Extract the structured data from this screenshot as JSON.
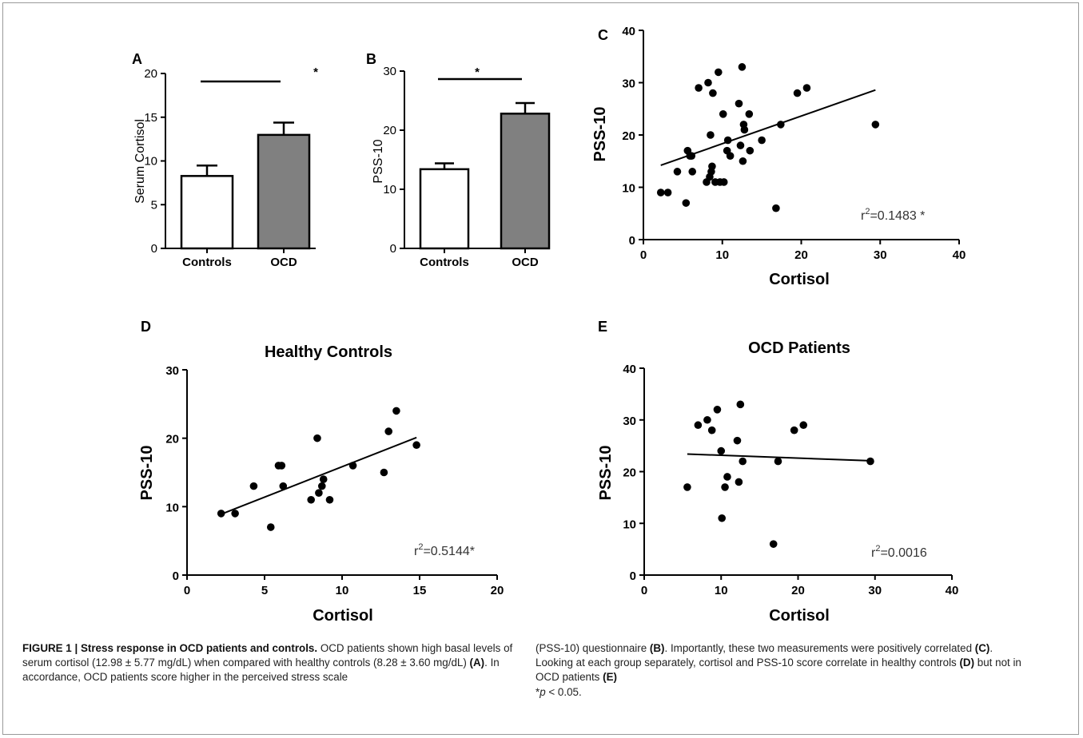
{
  "panels": {
    "A": {
      "letter": "A",
      "ylabel": "Serum Cortisol",
      "star": "*"
    },
    "B": {
      "letter": "B",
      "ylabel": "PSS-10",
      "star": "*"
    },
    "C": {
      "letter": "C",
      "ylabel": "PSS-10",
      "xlabel": "Cortisol",
      "annotation_base": "r",
      "annotation_sup": "2",
      "annotation_rest": "=0.1483 *"
    },
    "D": {
      "letter": "D",
      "title": "Healthy Controls",
      "ylabel": "PSS-10",
      "xlabel": "Cortisol",
      "annotation_base": "r",
      "annotation_sup": "2",
      "annotation_rest": "=0.5144*"
    },
    "E": {
      "letter": "E",
      "title": "OCD Patients",
      "ylabel": "PSS-10",
      "xlabel": "Cortisol",
      "annotation_base": "r",
      "annotation_sup": "2",
      "annotation_rest": "=0.0016"
    }
  },
  "chart_data": [
    {
      "id": "A",
      "type": "bar",
      "categories": [
        "Controls",
        "OCD"
      ],
      "values": [
        8.28,
        12.98
      ],
      "errors": [
        1.2,
        1.4
      ],
      "colors": [
        "#ffffff",
        "#808080"
      ],
      "ylabel": "Serum Cortisol",
      "ylim": [
        0,
        20
      ],
      "yticks": [
        0,
        5,
        10,
        15,
        20
      ]
    },
    {
      "id": "B",
      "type": "bar",
      "categories": [
        "Controls",
        "OCD"
      ],
      "values": [
        13.4,
        22.8
      ],
      "errors": [
        1.0,
        1.8
      ],
      "colors": [
        "#ffffff",
        "#808080"
      ],
      "ylabel": "PSS-10",
      "ylim": [
        0,
        30
      ],
      "yticks": [
        0,
        10,
        20,
        30
      ]
    },
    {
      "id": "C",
      "type": "scatter",
      "xlabel": "Cortisol",
      "ylabel": "PSS-10",
      "xlim": [
        0,
        40
      ],
      "ylim": [
        0,
        40
      ],
      "xticks": [
        0,
        10,
        20,
        30,
        40
      ],
      "yticks": [
        0,
        10,
        20,
        30,
        40
      ],
      "points": [
        [
          2.2,
          9
        ],
        [
          3.1,
          9
        ],
        [
          4.3,
          13
        ],
        [
          5.4,
          7
        ],
        [
          5.6,
          17
        ],
        [
          5.9,
          16
        ],
        [
          6.1,
          16
        ],
        [
          6.2,
          13
        ],
        [
          7.0,
          29
        ],
        [
          8.0,
          11
        ],
        [
          8.2,
          30
        ],
        [
          8.4,
          12
        ],
        [
          8.5,
          20
        ],
        [
          8.6,
          13
        ],
        [
          8.7,
          14
        ],
        [
          8.8,
          28
        ],
        [
          9.1,
          11
        ],
        [
          9.5,
          32
        ],
        [
          9.7,
          11
        ],
        [
          10.1,
          24
        ],
        [
          10.2,
          11
        ],
        [
          10.6,
          17
        ],
        [
          10.7,
          19
        ],
        [
          11.0,
          16
        ],
        [
          12.1,
          26
        ],
        [
          12.3,
          18
        ],
        [
          12.5,
          33
        ],
        [
          12.6,
          15
        ],
        [
          12.7,
          22
        ],
        [
          12.8,
          21
        ],
        [
          13.4,
          24
        ],
        [
          13.5,
          17
        ],
        [
          15.0,
          19
        ],
        [
          16.8,
          6
        ],
        [
          17.4,
          22
        ],
        [
          19.5,
          28
        ],
        [
          20.7,
          29
        ],
        [
          29.4,
          22
        ]
      ],
      "trendline": [
        [
          2.2,
          14.2
        ],
        [
          29.4,
          28.6
        ]
      ]
    },
    {
      "id": "D",
      "type": "scatter",
      "title": "Healthy Controls",
      "xlabel": "Cortisol",
      "ylabel": "PSS-10",
      "xlim": [
        0,
        20
      ],
      "ylim": [
        0,
        30
      ],
      "xticks": [
        0,
        5,
        10,
        15,
        20
      ],
      "yticks": [
        0,
        10,
        20,
        30
      ],
      "points": [
        [
          2.2,
          9
        ],
        [
          3.1,
          9
        ],
        [
          4.3,
          13
        ],
        [
          5.4,
          7
        ],
        [
          5.9,
          16
        ],
        [
          6.1,
          16
        ],
        [
          6.2,
          13
        ],
        [
          8.0,
          11
        ],
        [
          8.4,
          20
        ],
        [
          8.5,
          12
        ],
        [
          8.7,
          13
        ],
        [
          8.8,
          14
        ],
        [
          9.2,
          11
        ],
        [
          10.7,
          16
        ],
        [
          12.7,
          15
        ],
        [
          13.0,
          21
        ],
        [
          13.5,
          24
        ],
        [
          14.8,
          19
        ]
      ],
      "trendline": [
        [
          2.2,
          8.9
        ],
        [
          14.8,
          20.1
        ]
      ]
    },
    {
      "id": "E",
      "type": "scatter",
      "title": "OCD Patients",
      "xlabel": "Cortisol",
      "ylabel": "PSS-10",
      "xlim": [
        0,
        40
      ],
      "ylim": [
        0,
        40
      ],
      "xticks": [
        0,
        10,
        20,
        30,
        40
      ],
      "yticks": [
        0,
        10,
        20,
        30,
        40
      ],
      "points": [
        [
          5.6,
          17
        ],
        [
          7.0,
          29
        ],
        [
          8.2,
          30
        ],
        [
          8.8,
          28
        ],
        [
          9.5,
          32
        ],
        [
          10.0,
          24
        ],
        [
          10.1,
          11
        ],
        [
          10.5,
          17
        ],
        [
          10.8,
          19
        ],
        [
          12.1,
          26
        ],
        [
          12.3,
          18
        ],
        [
          12.5,
          33
        ],
        [
          12.8,
          22
        ],
        [
          16.8,
          6
        ],
        [
          17.4,
          22
        ],
        [
          19.5,
          28
        ],
        [
          20.7,
          29
        ],
        [
          29.4,
          22
        ]
      ],
      "trendline": [
        [
          5.6,
          23.4
        ],
        [
          29.4,
          22.1
        ]
      ]
    }
  ],
  "caption": {
    "fig_label": "FIGURE 1 | Stress response in OCD patients and controls.",
    "left_1": " OCD patients shown high basal levels of serum cortisol (12.98 ± 5.77 mg/dL) when compared with healthy controls (8.28 ± 3.60 mg/dL) ",
    "ref_A": "(A)",
    "left_2": ". In accordance, OCD patients score higher in the perceived stress scale",
    "right_1": "(PSS-10) questionnaire ",
    "ref_B": "(B)",
    "right_2": ". Importantly, these two measurements were positively correlated ",
    "ref_C": "(C)",
    "right_3": ". Looking at each group separately, cortisol and PSS-10 score correlate in healthy controls ",
    "ref_D": "(D)",
    "right_4": " but not in OCD patients ",
    "ref_E": "(E)",
    "right_5": "*",
    "p_italic": "p",
    "right_6": " < 0.05."
  }
}
